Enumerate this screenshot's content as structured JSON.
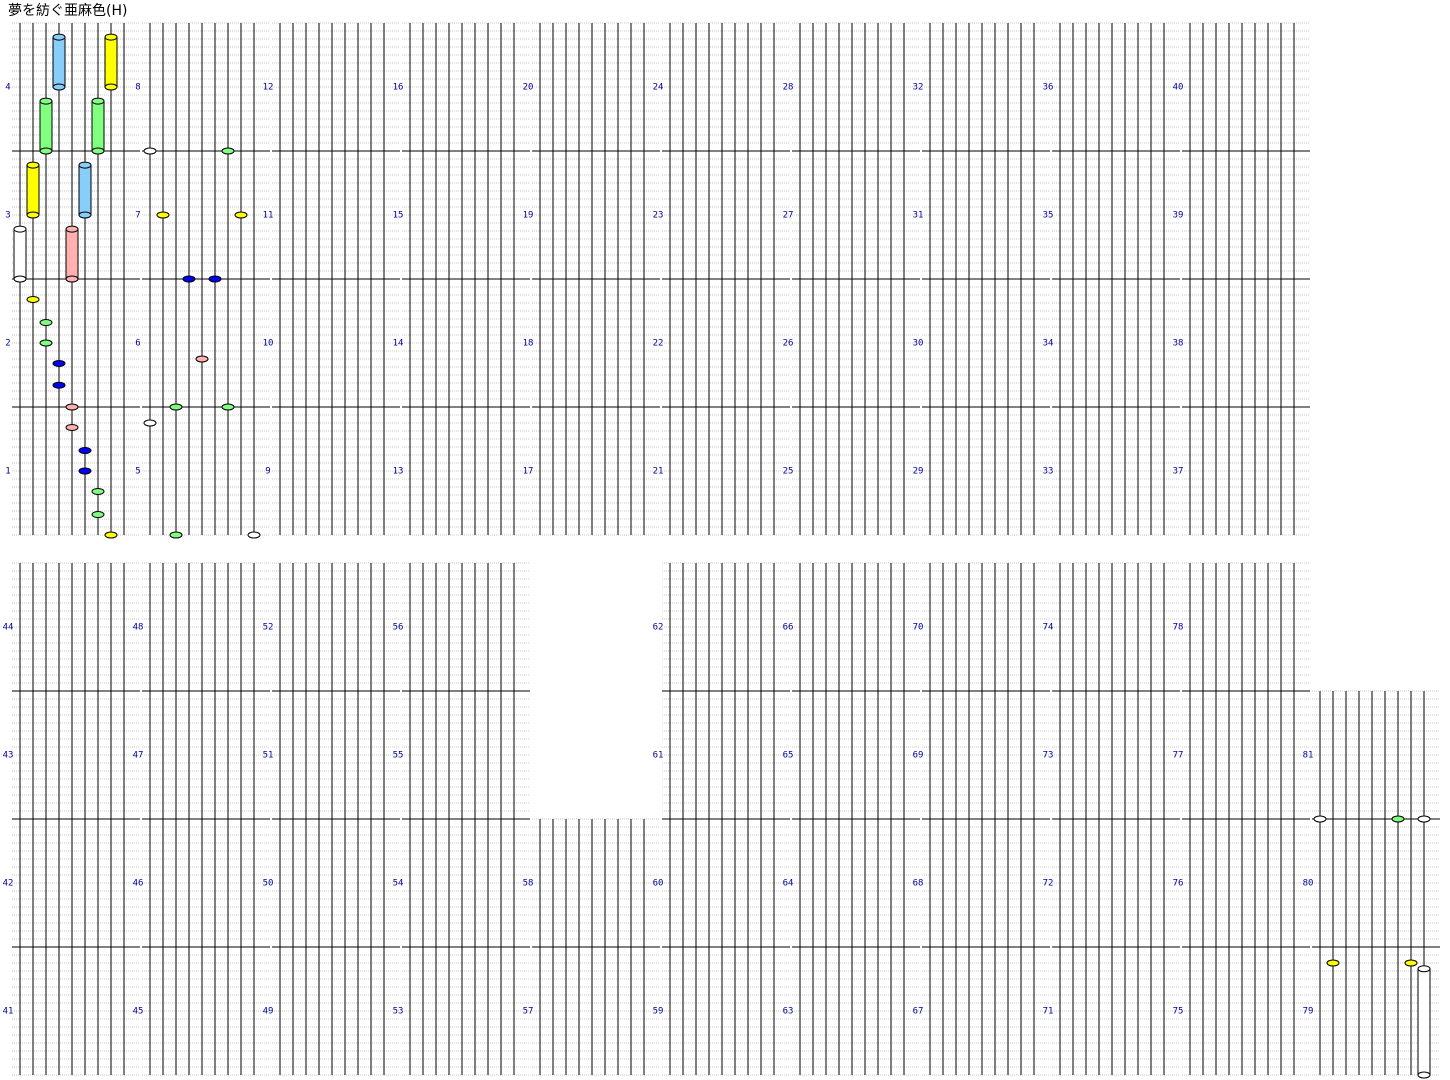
{
  "title": "夢を紡ぐ亜麻色(H)",
  "measures": [
    1,
    2,
    3,
    4,
    5,
    6,
    7,
    8,
    9,
    10,
    11,
    12,
    13,
    14,
    15,
    16,
    17,
    18,
    19,
    20,
    21,
    22,
    23,
    24,
    25,
    26,
    27,
    28,
    29,
    30,
    31,
    32,
    33,
    34,
    35,
    36,
    37,
    38,
    39,
    40,
    41,
    42,
    43,
    44,
    45,
    46,
    47,
    48,
    49,
    50,
    51,
    52,
    53,
    54,
    55,
    56,
    57,
    58,
    59,
    60,
    61,
    62,
    63,
    64,
    65,
    66,
    67,
    68,
    69,
    70,
    71,
    72,
    73,
    74,
    75,
    76,
    77,
    78,
    79,
    80,
    81
  ],
  "lane_colors": [
    "#ffffff",
    "#ffff00",
    "#80ff80",
    "#0000ff",
    "#ffb0b0",
    "#0000ff",
    "#80ff80",
    "#ffff00",
    "#ffffff"
  ],
  "hold_colors": [
    "#ffffff",
    "#ffff00",
    "#80ff80",
    "#87cefa",
    "#ffb0b0",
    "#87cefa",
    "#80ff80",
    "#ffff00",
    "#ffffff"
  ],
  "notes": [
    {
      "measure": 1,
      "lane": 4,
      "pos": 0.84
    },
    {
      "measure": 1,
      "lane": 5,
      "pos": 0.66
    },
    {
      "measure": 1,
      "lane": 5,
      "pos": 0.5
    },
    {
      "measure": 1,
      "lane": 6,
      "pos": 0.34
    },
    {
      "measure": 1,
      "lane": 6,
      "pos": 0.16
    },
    {
      "measure": 1,
      "lane": 7,
      "pos": 0
    },
    {
      "measure": 2,
      "lane": 4,
      "pos": 0
    },
    {
      "measure": 2,
      "lane": 3,
      "pos": 0.17
    },
    {
      "measure": 2,
      "lane": 3,
      "pos": 0.34
    },
    {
      "measure": 2,
      "lane": 2,
      "pos": 0.5
    },
    {
      "measure": 2,
      "lane": 2,
      "pos": 0.66
    },
    {
      "measure": 2,
      "lane": 1,
      "pos": 0.84
    },
    {
      "measure": 3,
      "lane": 0,
      "pos": 0,
      "length": 0.39
    },
    {
      "measure": 3,
      "lane": 4,
      "pos": 0,
      "length": 0.39
    },
    {
      "measure": 3,
      "lane": 1,
      "pos": 0.5,
      "length": 0.39
    },
    {
      "measure": 3,
      "lane": 5,
      "pos": 0.5,
      "length": 0.39
    },
    {
      "measure": 4,
      "lane": 2,
      "pos": 0,
      "length": 0.39
    },
    {
      "measure": 4,
      "lane": 6,
      "pos": 0,
      "length": 0.39
    },
    {
      "measure": 4,
      "lane": 3,
      "pos": 0.5,
      "length": 0.39
    },
    {
      "measure": 4,
      "lane": 7,
      "pos": 0.5,
      "length": 0.39
    },
    {
      "measure": 5,
      "lane": 0,
      "pos": 0.875
    },
    {
      "measure": 5,
      "lane": 2,
      "pos": 0
    },
    {
      "measure": 5,
      "lane": 8,
      "pos": 0
    },
    {
      "measure": 6,
      "lane": 2,
      "pos": 0
    },
    {
      "measure": 6,
      "lane": 6,
      "pos": 0
    },
    {
      "measure": 6,
      "lane": 4,
      "pos": 0.375
    },
    {
      "measure": 7,
      "lane": 3,
      "pos": 0
    },
    {
      "measure": 7,
      "lane": 5,
      "pos": 0
    },
    {
      "measure": 7,
      "lane": 1,
      "pos": 0.5
    },
    {
      "measure": 7,
      "lane": 7,
      "pos": 0.5
    },
    {
      "measure": 8,
      "lane": 0,
      "pos": 0
    },
    {
      "measure": 8,
      "lane": 6,
      "pos": 0
    },
    {
      "measure": 79,
      "lane": 1,
      "pos": 0.875
    },
    {
      "measure": 79,
      "lane": 7,
      "pos": 0.875
    },
    {
      "measure": 79,
      "lane": 8,
      "pos": 0,
      "length": 0.83
    },
    {
      "measure": 81,
      "lane": 0,
      "pos": 0
    },
    {
      "measure": 81,
      "lane": 6,
      "pos": 0
    },
    {
      "measure": 81,
      "lane": 8,
      "pos": 0
    }
  ]
}
